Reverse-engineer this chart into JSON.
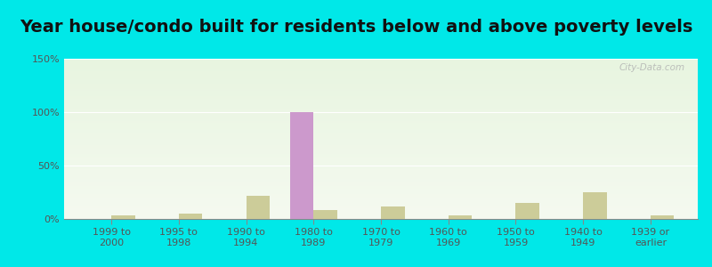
{
  "title": "Year house/condo built for residents below and above poverty levels",
  "categories": [
    "1999 to\n2000",
    "1995 to\n1998",
    "1990 to\n1994",
    "1980 to\n1989",
    "1970 to\n1979",
    "1960 to\n1969",
    "1950 to\n1959",
    "1940 to\n1949",
    "1939 or\nearlier"
  ],
  "below_poverty": [
    0,
    0,
    0,
    100,
    0,
    0,
    0,
    0,
    0
  ],
  "above_poverty": [
    3,
    5,
    22,
    8,
    12,
    3,
    15,
    25,
    3
  ],
  "below_color": "#cc99cc",
  "above_color": "#cccc99",
  "outer_bg": "#00e8e8",
  "plot_bg_top": "#e8f5e0",
  "plot_bg_bottom": "#f5faf0",
  "ylim": [
    0,
    150
  ],
  "yticks": [
    0,
    50,
    100,
    150
  ],
  "ytick_labels": [
    "0%",
    "50%",
    "100%",
    "150%"
  ],
  "bar_width": 0.35,
  "title_fontsize": 14,
  "tick_fontsize": 8,
  "legend_fontsize": 9,
  "watermark": "City-Data.com"
}
